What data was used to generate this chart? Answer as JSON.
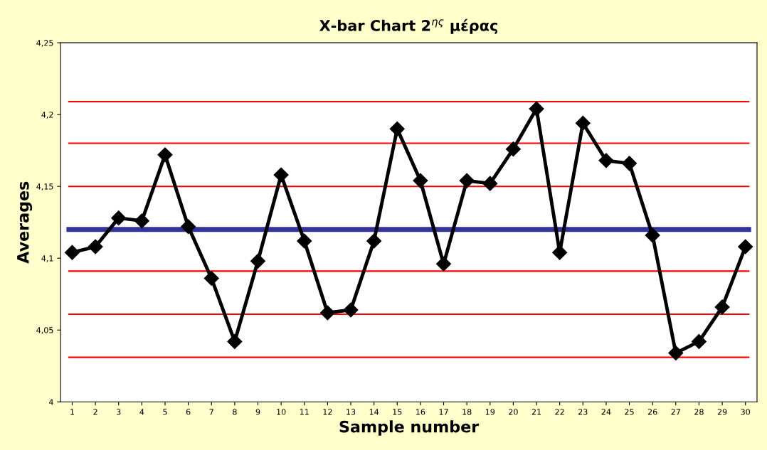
{
  "chart_data": {
    "type": "line",
    "title": "X-bar Chart 2$^{ης}$ μέρας",
    "xlabel": "Sample number",
    "ylabel": "Averages",
    "categories": [
      "1",
      "2",
      "3",
      "4",
      "5",
      "6",
      "7",
      "8",
      "9",
      "10",
      "11",
      "12",
      "13",
      "14",
      "15",
      "16",
      "17",
      "18",
      "19",
      "20",
      "21",
      "22",
      "23",
      "24",
      "25",
      "26",
      "27",
      "28",
      "29",
      "30"
    ],
    "series": [
      {
        "color": "#000000",
        "values": [
          4.104,
          4.108,
          4.128,
          4.126,
          4.172,
          4.122,
          4.086,
          4.042,
          4.098,
          4.158,
          4.112,
          4.062,
          4.064,
          4.112,
          4.19,
          4.154,
          4.096,
          4.154,
          4.152,
          4.176,
          4.204,
          4.104,
          4.194,
          4.168,
          4.166,
          4.116,
          4.034,
          4.042,
          4.066,
          4.108
        ]
      }
    ],
    "ylim": [
      4,
      4.25
    ],
    "yticks": [
      4,
      {
        "value": 4.05,
        "label": "4,05"
      },
      {
        "value": 4.1,
        "label": "4,1"
      },
      {
        "value": 4.15,
        "label": "4,15"
      },
      {
        "value": 4.2,
        "label": "4,2"
      },
      {
        "value": 4.25,
        "label": "4,25"
      }
    ],
    "ref_lines": [
      {
        "axis": "y",
        "value": 4.209,
        "color": "#ff0000"
      },
      {
        "axis": "y",
        "value": 4.18,
        "color": "#ff0000"
      },
      {
        "axis": "y",
        "value": 4.15,
        "color": "#ff0000"
      },
      {
        "axis": "y",
        "value": 4.091,
        "color": "#ff0000"
      },
      {
        "axis": "y",
        "value": 4.061,
        "color": "#ff0000"
      },
      {
        "axis": "y",
        "value": 4.031,
        "color": "#ff0000"
      },
      {
        "axis": "y",
        "value": 4.12,
        "color": "#333399"
      }
    ],
    "marker": "diamond",
    "line_style": "solid",
    "grid": false,
    "legend": false
  }
}
